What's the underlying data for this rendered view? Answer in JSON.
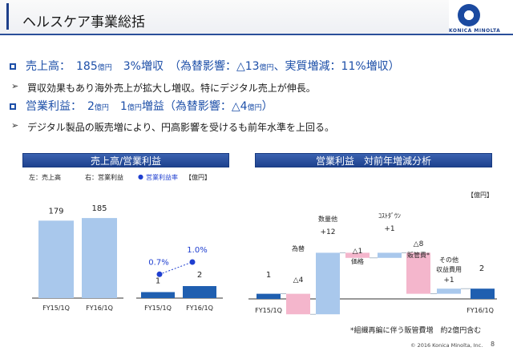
{
  "header": {
    "title": "ヘルスケア事業総括",
    "logo_text": "KONICA MINOLTA"
  },
  "bullets": [
    {
      "type": "square",
      "parts": [
        "売上高：　185",
        "億円",
        "　3%増収　（為替影響：△13",
        "億円",
        "、実質増減：11%増収）"
      ]
    },
    {
      "type": "arrow",
      "text": "買収効果もあり海外売上が拡大し増収。特にデジタル売上が伸長。"
    },
    {
      "type": "square",
      "parts": [
        "営業利益：　2",
        "億円",
        "　1",
        "億円",
        "増益（為替影響：△4",
        "億円",
        "）"
      ]
    },
    {
      "type": "arrow",
      "text": "デジタル製品の販売増により、円高影響を受けるも前年水準を上回る。"
    }
  ],
  "left_panel": {
    "title": "売上高/営業利益",
    "legend_sales": "左：売上高",
    "legend_op": "右：営業利益",
    "legend_rate": "営業利益率",
    "unit": "【億円】"
  },
  "right_panel": {
    "title": "営業利益　対前年増減分析",
    "unit": "【億円】",
    "footnote": "*組織再編に伴う販管費増　約2億円含む"
  },
  "copyright": "© 2016 Konica Minolta, Inc.",
  "page_number": "8",
  "colors": {
    "accent": "#1d4fa8",
    "bar_light": "#a9c8ec",
    "bar_dark": "#1f5fb0",
    "negative": "#f4b6cc",
    "dot": "#1f3fd0"
  },
  "chart_data": [
    {
      "type": "bar",
      "categories": [
        "FY15/1Q",
        "FY16/1Q"
      ],
      "series": [
        {
          "name": "売上高",
          "values": [
            179,
            185
          ]
        }
      ],
      "value_labels": [
        "179",
        "185"
      ]
    },
    {
      "type": "bar",
      "categories": [
        "FY15/1Q",
        "FY16/1Q"
      ],
      "series": [
        {
          "name": "営業利益",
          "values": [
            1,
            2
          ]
        },
        {
          "name": "営業利益率",
          "values": [
            0.7,
            1.0
          ]
        }
      ],
      "value_labels": [
        "1",
        "2"
      ],
      "rate_labels": [
        "0.7%",
        "1.0%"
      ]
    },
    {
      "type": "bar",
      "subtype": "waterfall",
      "steps": [
        {
          "label": "FY15/1Q",
          "value": 1,
          "kind": "total",
          "value_label": "1"
        },
        {
          "label": "為替",
          "value": -4,
          "kind": "decrease",
          "value_label": "△4"
        },
        {
          "label": "数量他",
          "value": 12,
          "kind": "increase",
          "value_label": "+12"
        },
        {
          "label": "価格",
          "value": -1,
          "kind": "decrease",
          "value_label": "△1"
        },
        {
          "label": "ｺｽﾄﾀﾞｳﾝ",
          "value": 1,
          "kind": "increase",
          "value_label": "+1"
        },
        {
          "label": "販管費*",
          "value": -8,
          "kind": "decrease",
          "value_label": "△8"
        },
        {
          "label": "その他\n収益費用",
          "value": 1,
          "kind": "increase",
          "value_label": "+1"
        },
        {
          "label": "FY16/1Q",
          "value": 2,
          "kind": "total",
          "value_label": "2"
        }
      ]
    }
  ]
}
